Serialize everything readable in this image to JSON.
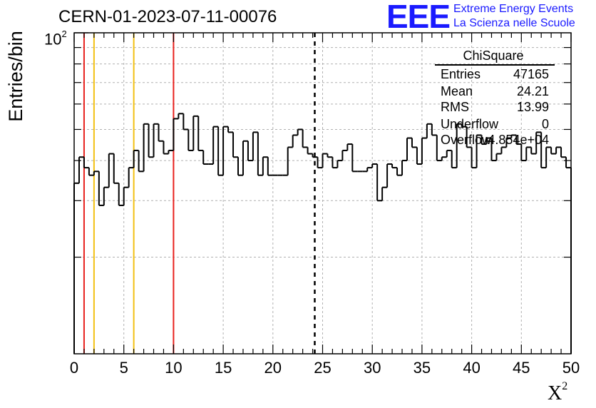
{
  "header": {
    "run_title": "CERN-01-2023-07-11-00076"
  },
  "logo": {
    "mark": "EEE",
    "line1": "Extreme Energy Events",
    "line2": "La Scienza nelle Scuole",
    "color": "#1a1aff"
  },
  "stats_box": {
    "title": "ChiSquare",
    "rows": [
      {
        "key": "Entries",
        "value": "47165"
      },
      {
        "key": "Mean",
        "value": "24.21"
      },
      {
        "key": "RMS",
        "value": "13.99"
      },
      {
        "key": "Underflow",
        "value": "0"
      },
      {
        "key": "Overflow",
        "value": "4.854e+04"
      }
    ]
  },
  "chart_data": {
    "type": "histogram",
    "title": "CERN-01-2023-07-11-00076",
    "xlabel": "X²",
    "ylabel": "Entries/bin",
    "xlim": [
      0,
      50
    ],
    "ylim_log": [
      10,
      100
    ],
    "log_y": true,
    "ytick_label": "10²",
    "xticks": [
      "0",
      "5",
      "10",
      "15",
      "20",
      "25",
      "30",
      "35",
      "40",
      "45",
      "50"
    ],
    "bin_width": 0.5,
    "grid": true,
    "mean_marker_x": 24.21,
    "vertical_lines": [
      {
        "x": 1,
        "color": "#e8211d"
      },
      {
        "x": 2,
        "color": "#f2c012"
      },
      {
        "x": 6,
        "color": "#f2c012"
      },
      {
        "x": 10,
        "color": "#e8211d"
      }
    ],
    "counts": [
      34,
      41,
      38,
      36,
      37,
      29,
      33,
      42,
      34,
      29,
      33,
      38,
      43,
      37,
      52,
      41,
      52,
      46,
      42,
      43,
      54,
      56,
      50,
      43,
      55,
      43,
      39,
      39,
      51,
      36,
      51,
      49,
      41,
      36,
      46,
      40,
      49,
      36,
      41,
      36,
      36,
      36,
      36,
      44,
      48,
      50,
      44,
      42,
      41,
      38,
      42,
      41,
      38,
      40,
      43,
      45,
      37,
      37,
      37,
      38,
      39,
      30,
      33,
      39,
      38,
      36,
      40,
      47,
      44,
      39,
      47,
      52,
      48,
      40,
      41,
      43,
      38,
      52,
      51,
      44,
      38,
      48,
      45,
      47,
      40,
      42,
      44,
      47,
      48,
      45,
      40,
      44,
      42,
      49,
      38,
      44,
      42,
      44,
      41,
      38
    ]
  }
}
